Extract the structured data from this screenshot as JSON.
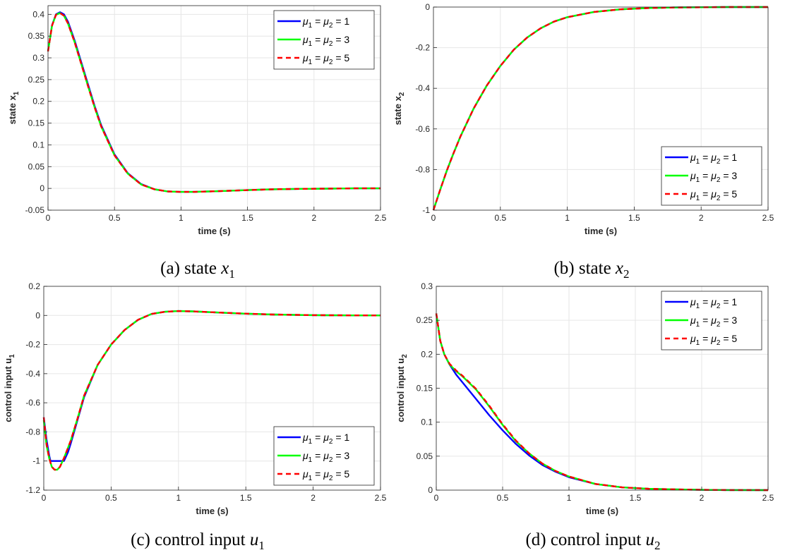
{
  "colors": {
    "series_1": "#0000ff",
    "series_2": "#00ff00",
    "series_3": "#ff0000",
    "grid": "#e6e6e6",
    "axis": "#262626"
  },
  "chart_data": [
    {
      "type": "line",
      "id": "a",
      "caption_prefix": "(a) state",
      "caption_var": "x",
      "caption_sub": "1",
      "xlabel": "time (s)",
      "ylabel_main": "state x",
      "ylabel_sub": "1",
      "xlim": [
        0,
        2.5
      ],
      "ylim": [
        -0.05,
        0.42
      ],
      "xticks": [
        "0",
        "0.5",
        "1",
        "1.5",
        "2",
        "2.5"
      ],
      "yticks": [
        "-0.05",
        "0",
        "0.05",
        "0.1",
        "0.15",
        "0.2",
        "0.25",
        "0.3",
        "0.35",
        "0.4"
      ],
      "grid": true,
      "legend_position": "top-right",
      "series": [
        {
          "name": "μ1 = μ2 = 1",
          "style": "solid",
          "color": "#0000ff",
          "x": [
            0,
            0.03,
            0.06,
            0.09,
            0.12,
            0.15,
            0.2,
            0.25,
            0.3,
            0.35,
            0.4,
            0.5,
            0.6,
            0.7,
            0.8,
            0.9,
            1.0,
            1.1,
            1.2,
            1.3,
            1.5,
            1.7,
            1.9,
            2.1,
            2.3,
            2.5
          ],
          "y": [
            0.315,
            0.375,
            0.4,
            0.405,
            0.4,
            0.383,
            0.34,
            0.29,
            0.24,
            0.19,
            0.145,
            0.078,
            0.035,
            0.01,
            -0.002,
            -0.007,
            -0.008,
            -0.008,
            -0.007,
            -0.006,
            -0.004,
            -0.002,
            -0.001,
            -0.0005,
            0,
            0
          ]
        },
        {
          "name": "μ1 = μ2 = 3",
          "style": "solid",
          "color": "#00ff00",
          "x": [
            0,
            0.03,
            0.06,
            0.09,
            0.12,
            0.15,
            0.2,
            0.25,
            0.3,
            0.35,
            0.4,
            0.5,
            0.6,
            0.7,
            0.8,
            0.9,
            1.0,
            1.1,
            1.2,
            1.3,
            1.5,
            1.7,
            1.9,
            2.1,
            2.3,
            2.5
          ],
          "y": [
            0.315,
            0.374,
            0.399,
            0.403,
            0.397,
            0.379,
            0.336,
            0.286,
            0.236,
            0.187,
            0.142,
            0.076,
            0.034,
            0.009,
            -0.002,
            -0.007,
            -0.008,
            -0.008,
            -0.007,
            -0.006,
            -0.004,
            -0.002,
            -0.001,
            -0.0005,
            0,
            0
          ]
        },
        {
          "name": "μ1 = μ2 = 5",
          "style": "dashed",
          "color": "#ff0000",
          "x": [
            0,
            0.03,
            0.06,
            0.09,
            0.12,
            0.15,
            0.2,
            0.25,
            0.3,
            0.35,
            0.4,
            0.5,
            0.6,
            0.7,
            0.8,
            0.9,
            1.0,
            1.1,
            1.2,
            1.3,
            1.5,
            1.7,
            1.9,
            2.1,
            2.3,
            2.5
          ],
          "y": [
            0.315,
            0.374,
            0.399,
            0.403,
            0.397,
            0.379,
            0.336,
            0.286,
            0.236,
            0.187,
            0.142,
            0.076,
            0.034,
            0.009,
            -0.002,
            -0.007,
            -0.008,
            -0.008,
            -0.007,
            -0.006,
            -0.004,
            -0.002,
            -0.001,
            -0.0005,
            0,
            0
          ]
        }
      ]
    },
    {
      "type": "line",
      "id": "b",
      "caption_prefix": "(b) state",
      "caption_var": "x",
      "caption_sub": "2",
      "xlabel": "time (s)",
      "ylabel_main": "state x",
      "ylabel_sub": "2",
      "xlim": [
        0,
        2.5
      ],
      "ylim": [
        -1,
        0
      ],
      "xticks": [
        "0",
        "0.5",
        "1",
        "1.5",
        "2",
        "2.5"
      ],
      "yticks": [
        "-1",
        "-0.8",
        "-0.6",
        "-0.4",
        "-0.2",
        "0"
      ],
      "grid": true,
      "legend_position": "bottom-right",
      "series": [
        {
          "name": "μ1 = μ2 = 1",
          "style": "solid",
          "color": "#0000ff",
          "x": [
            0,
            0.05,
            0.1,
            0.15,
            0.2,
            0.3,
            0.4,
            0.5,
            0.6,
            0.7,
            0.8,
            0.9,
            1.0,
            1.2,
            1.4,
            1.6,
            1.8,
            2.0,
            2.2,
            2.5
          ],
          "y": [
            -1,
            -0.9,
            -0.805,
            -0.72,
            -0.64,
            -0.5,
            -0.385,
            -0.29,
            -0.21,
            -0.15,
            -0.105,
            -0.072,
            -0.05,
            -0.024,
            -0.011,
            -0.005,
            -0.002,
            -0.001,
            0,
            0
          ]
        },
        {
          "name": "μ1 = μ2 = 3",
          "style": "solid",
          "color": "#00ff00",
          "x": [
            0,
            0.05,
            0.1,
            0.15,
            0.2,
            0.3,
            0.4,
            0.5,
            0.6,
            0.7,
            0.8,
            0.9,
            1.0,
            1.2,
            1.4,
            1.6,
            1.8,
            2.0,
            2.2,
            2.5
          ],
          "y": [
            -1,
            -0.9,
            -0.805,
            -0.72,
            -0.64,
            -0.5,
            -0.385,
            -0.29,
            -0.21,
            -0.15,
            -0.105,
            -0.072,
            -0.05,
            -0.024,
            -0.011,
            -0.005,
            -0.002,
            -0.001,
            0,
            0
          ]
        },
        {
          "name": "μ1 = μ2 = 5",
          "style": "dashed",
          "color": "#ff0000",
          "x": [
            0,
            0.05,
            0.1,
            0.15,
            0.2,
            0.3,
            0.4,
            0.5,
            0.6,
            0.7,
            0.8,
            0.9,
            1.0,
            1.2,
            1.4,
            1.6,
            1.8,
            2.0,
            2.2,
            2.5
          ],
          "y": [
            -1,
            -0.9,
            -0.805,
            -0.72,
            -0.64,
            -0.5,
            -0.385,
            -0.29,
            -0.21,
            -0.15,
            -0.105,
            -0.072,
            -0.05,
            -0.024,
            -0.011,
            -0.005,
            -0.002,
            -0.001,
            0,
            0
          ]
        }
      ]
    },
    {
      "type": "line",
      "id": "c",
      "caption_prefix": "(c) control input",
      "caption_var": "u",
      "caption_sub": "1",
      "xlabel": "time (s)",
      "ylabel_main": "control input u",
      "ylabel_sub": "1",
      "xlim": [
        0,
        2.5
      ],
      "ylim": [
        -1.2,
        0.2
      ],
      "xticks": [
        "0",
        "0.5",
        "1",
        "1.5",
        "2",
        "2.5"
      ],
      "yticks": [
        "-1.2",
        "-1",
        "-0.8",
        "-0.6",
        "-0.4",
        "-0.2",
        "0",
        "0.2"
      ],
      "grid": true,
      "legend_position": "bottom-right",
      "series": [
        {
          "name": "μ1 = μ2 = 1",
          "style": "solid",
          "color": "#0000ff",
          "x": [
            0,
            0.02,
            0.04,
            0.05,
            0.08,
            0.1,
            0.12,
            0.15,
            0.18,
            0.2,
            0.25,
            0.3,
            0.4,
            0.5,
            0.6,
            0.7,
            0.8,
            0.9,
            1.0,
            1.1,
            1.3,
            1.5,
            1.7,
            2.0,
            2.3,
            2.5
          ],
          "y": [
            -0.7,
            -0.85,
            -0.96,
            -1.0,
            -1.0,
            -1.0,
            -1.0,
            -1.0,
            -0.94,
            -0.88,
            -0.72,
            -0.56,
            -0.34,
            -0.2,
            -0.1,
            -0.03,
            0.01,
            0.025,
            0.03,
            0.028,
            0.02,
            0.012,
            0.006,
            0.002,
            0.0005,
            0
          ]
        },
        {
          "name": "μ1 = μ2 = 3",
          "style": "solid",
          "color": "#00ff00",
          "x": [
            0,
            0.02,
            0.04,
            0.06,
            0.08,
            0.1,
            0.12,
            0.15,
            0.18,
            0.2,
            0.25,
            0.3,
            0.4,
            0.5,
            0.6,
            0.7,
            0.8,
            0.9,
            1.0,
            1.1,
            1.3,
            1.5,
            1.7,
            2.0,
            2.3,
            2.5
          ],
          "y": [
            -0.72,
            -0.89,
            -0.98,
            -1.04,
            -1.06,
            -1.06,
            -1.04,
            -0.98,
            -0.91,
            -0.86,
            -0.71,
            -0.55,
            -0.34,
            -0.2,
            -0.1,
            -0.03,
            0.01,
            0.025,
            0.03,
            0.028,
            0.02,
            0.012,
            0.006,
            0.002,
            0.0005,
            0
          ]
        },
        {
          "name": "μ1 = μ2 = 5",
          "style": "dashed",
          "color": "#ff0000",
          "x": [
            0,
            0.02,
            0.04,
            0.06,
            0.08,
            0.1,
            0.12,
            0.15,
            0.18,
            0.2,
            0.25,
            0.3,
            0.4,
            0.5,
            0.6,
            0.7,
            0.8,
            0.9,
            1.0,
            1.1,
            1.3,
            1.5,
            1.7,
            2.0,
            2.3,
            2.5
          ],
          "y": [
            -0.7,
            -0.88,
            -0.98,
            -1.04,
            -1.06,
            -1.06,
            -1.04,
            -0.98,
            -0.91,
            -0.86,
            -0.71,
            -0.55,
            -0.34,
            -0.2,
            -0.1,
            -0.03,
            0.01,
            0.025,
            0.03,
            0.028,
            0.02,
            0.012,
            0.006,
            0.002,
            0.0005,
            0
          ]
        }
      ]
    },
    {
      "type": "line",
      "id": "d",
      "caption_prefix": "(d) control input",
      "caption_var": "u",
      "caption_sub": "2",
      "xlabel": "time (s)",
      "ylabel_main": "control input u",
      "ylabel_sub": "2",
      "xlim": [
        0,
        2.5
      ],
      "ylim": [
        0,
        0.3
      ],
      "xticks": [
        "0",
        "0.5",
        "1",
        "1.5",
        "2",
        "2.5"
      ],
      "yticks": [
        "0",
        "0.05",
        "0.1",
        "0.15",
        "0.2",
        "0.25",
        "0.3"
      ],
      "grid": true,
      "legend_position": "top-right",
      "series": [
        {
          "name": "μ1 = μ2 = 1",
          "style": "solid",
          "color": "#0000ff",
          "x": [
            0,
            0.03,
            0.06,
            0.1,
            0.15,
            0.2,
            0.3,
            0.4,
            0.5,
            0.6,
            0.7,
            0.8,
            0.9,
            1.0,
            1.2,
            1.4,
            1.6,
            1.8,
            2.0,
            2.2,
            2.5
          ],
          "y": [
            0.26,
            0.22,
            0.2,
            0.185,
            0.17,
            0.158,
            0.134,
            0.11,
            0.088,
            0.068,
            0.051,
            0.037,
            0.027,
            0.019,
            0.009,
            0.004,
            0.002,
            0.001,
            0.0004,
            0.0001,
            0
          ]
        },
        {
          "name": "μ1 = μ2 = 3",
          "style": "solid",
          "color": "#00ff00",
          "x": [
            0,
            0.03,
            0.06,
            0.1,
            0.15,
            0.2,
            0.3,
            0.4,
            0.5,
            0.6,
            0.7,
            0.8,
            0.9,
            1.0,
            1.2,
            1.4,
            1.6,
            1.8,
            2.0,
            2.2,
            2.5
          ],
          "y": [
            0.26,
            0.22,
            0.2,
            0.185,
            0.175,
            0.167,
            0.148,
            0.123,
            0.096,
            0.072,
            0.054,
            0.039,
            0.028,
            0.02,
            0.009,
            0.004,
            0.002,
            0.001,
            0.0004,
            0.0001,
            0
          ]
        },
        {
          "name": "μ1 = μ2 = 5",
          "style": "dashed",
          "color": "#ff0000",
          "x": [
            0,
            0.03,
            0.06,
            0.1,
            0.15,
            0.2,
            0.3,
            0.4,
            0.5,
            0.6,
            0.7,
            0.8,
            0.9,
            1.0,
            1.2,
            1.4,
            1.6,
            1.8,
            2.0,
            2.2,
            2.5
          ],
          "y": [
            0.26,
            0.22,
            0.2,
            0.186,
            0.176,
            0.168,
            0.149,
            0.124,
            0.097,
            0.073,
            0.054,
            0.039,
            0.028,
            0.02,
            0.009,
            0.004,
            0.002,
            0.001,
            0.0004,
            0.0001,
            0
          ]
        }
      ]
    }
  ]
}
